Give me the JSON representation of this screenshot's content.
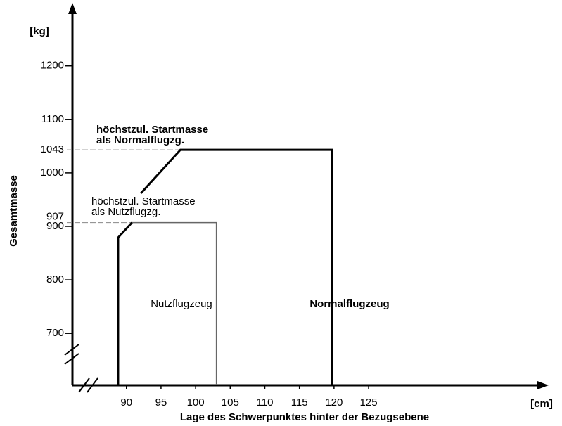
{
  "chart_data": {
    "type": "line",
    "x_label": "Lage des Schwerpunktes hinter der Bezugsebene",
    "x_unit": "[cm]",
    "y_label": "Gesamtmasse",
    "y_unit": "[kg]",
    "xlim": [
      82.2,
      150
    ],
    "ylim": [
      603,
      1310
    ],
    "xticks": [
      90,
      95,
      100,
      105,
      110,
      115,
      120,
      125
    ],
    "yticks": [
      700,
      800,
      900,
      1000,
      1100,
      1200
    ],
    "reference_lines": [
      {
        "value": 1043,
        "label_lines": [
          "höchstzul. Startmasse",
          "als Normalflugzg."
        ]
      },
      {
        "value": 907,
        "label_lines": [
          "höchstzul. Startmasse",
          "als Nutzflugzg."
        ]
      }
    ],
    "series": [
      {
        "name": "Normalflugzeug",
        "color": "#000000",
        "x": [
          92.1,
          97.8,
          119.7,
          119.7
        ],
        "y": [
          962,
          1043,
          1043,
          603
        ]
      },
      {
        "name": "Nutzflugzeug",
        "color": "#666666",
        "x": [
          88.8,
          88.8,
          90.8,
          103,
          103
        ],
        "y": [
          603,
          879,
          907,
          907,
          603
        ]
      }
    ]
  }
}
